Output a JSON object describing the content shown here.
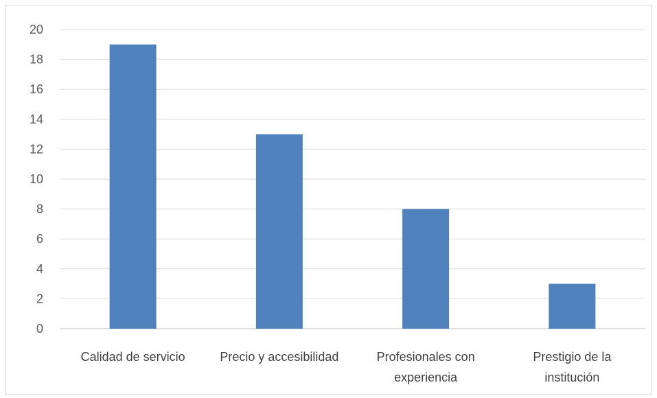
{
  "chart_data": {
    "type": "bar",
    "categories": [
      [
        "Calidad de servicio"
      ],
      [
        "Precio y accesibilidad"
      ],
      [
        "Profesionales con",
        "experiencia"
      ],
      [
        "Prestigio de la",
        "institución"
      ]
    ],
    "values": [
      19,
      13,
      8,
      3
    ],
    "ylim": [
      0,
      20
    ],
    "yticks": [
      0,
      2,
      4,
      6,
      8,
      10,
      12,
      14,
      16,
      18,
      20
    ],
    "grid": true,
    "colors": {
      "bar": "#4f81bd",
      "grid": "#d9d9d9",
      "axis": "#bfbfbf"
    }
  }
}
